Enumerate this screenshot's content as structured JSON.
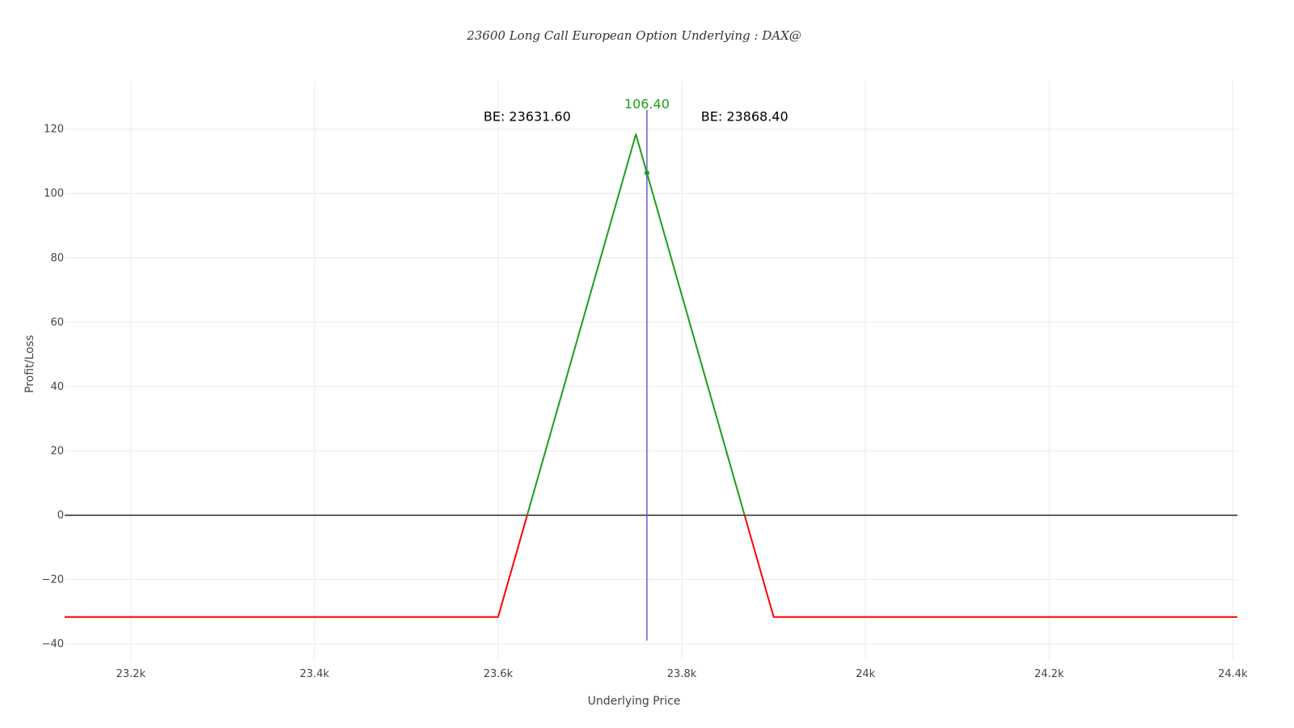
{
  "chart_data": {
    "type": "line",
    "title": "23600 Long Call European Option Underlying : DAX@",
    "xlabel": "Underlying Price",
    "ylabel": "Profit/Loss",
    "xlim": [
      23128,
      24405
    ],
    "ylim": [
      -45,
      135
    ],
    "x_ticks": [
      {
        "value": 23200,
        "label": "23.2k"
      },
      {
        "value": 23400,
        "label": "23.4k"
      },
      {
        "value": 23600,
        "label": "23.6k"
      },
      {
        "value": 23800,
        "label": "23.8k"
      },
      {
        "value": 24000,
        "label": "24k"
      },
      {
        "value": 24200,
        "label": "24.2k"
      },
      {
        "value": 24400,
        "label": "24.4k"
      }
    ],
    "y_ticks": [
      {
        "value": -40,
        "label": "−40"
      },
      {
        "value": -20,
        "label": "−20"
      },
      {
        "value": 0,
        "label": "0"
      },
      {
        "value": 20,
        "label": "20"
      },
      {
        "value": 40,
        "label": "40"
      },
      {
        "value": 60,
        "label": "60"
      },
      {
        "value": 80,
        "label": "80"
      },
      {
        "value": 100,
        "label": "100"
      },
      {
        "value": 120,
        "label": "120"
      }
    ],
    "grid": true,
    "series": [
      {
        "color": "#ff0000",
        "points": [
          [
            23128,
            -31.6
          ],
          [
            23600,
            -31.6
          ],
          [
            23631.6,
            0
          ]
        ]
      },
      {
        "color": "#1a9e1a",
        "points": [
          [
            23631.6,
            0
          ],
          [
            23750,
            118.4
          ],
          [
            23868.4,
            0
          ]
        ]
      },
      {
        "color": "#ff0000",
        "points": [
          [
            23868.4,
            0
          ],
          [
            23900,
            -31.6
          ],
          [
            24405,
            -31.6
          ]
        ]
      }
    ],
    "zero_line": {
      "y": 0,
      "color": "#000000"
    },
    "spot_line": {
      "x": 23762,
      "y_range": [
        -39,
        126
      ],
      "color": "#6a5acd"
    },
    "spot_marker": {
      "x": 23762,
      "y": 106.4,
      "color": "#1a9e1a"
    },
    "annotations": [
      {
        "id": "be-left",
        "text": "BE: 23631.60",
        "x": 23631.6,
        "y": 122.5,
        "color": "#000000"
      },
      {
        "id": "be-right",
        "text": "BE: 23868.40",
        "x": 23868.4,
        "y": 122.5,
        "color": "#000000"
      },
      {
        "id": "spot-value",
        "text": "106.40",
        "x": 23762,
        "y": 126.5,
        "color": "#1a9e1a"
      }
    ]
  }
}
